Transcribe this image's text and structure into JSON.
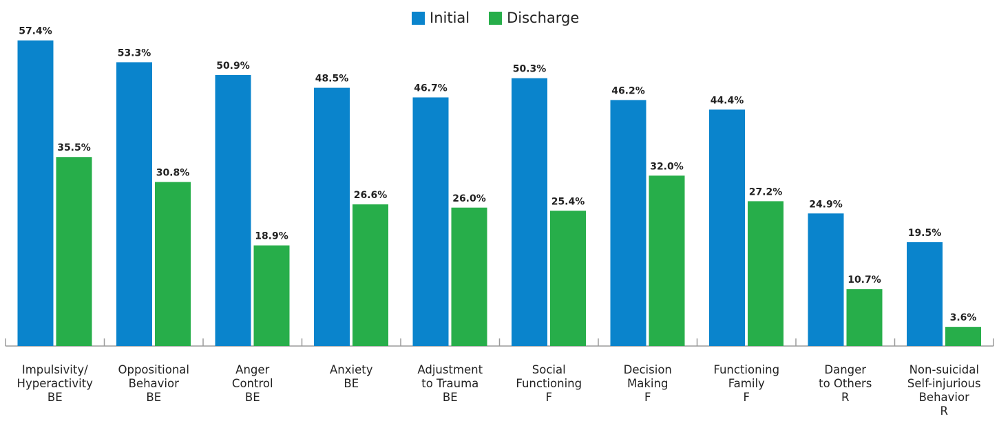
{
  "chart_data": {
    "type": "bar",
    "title": "",
    "xlabel": "",
    "ylabel": "",
    "ylim": [
      0,
      60
    ],
    "grid": false,
    "legend_position": "top-center",
    "value_suffix": "%",
    "categories": [
      [
        "Impulsivity/",
        "Hyperactivity",
        "BE"
      ],
      [
        "Oppositional",
        "Behavior",
        "BE"
      ],
      [
        "Anger",
        "Control",
        "BE"
      ],
      [
        "Anxiety",
        "BE"
      ],
      [
        "Adjustment",
        "to Trauma",
        "BE"
      ],
      [
        "Social",
        "Functioning",
        "F"
      ],
      [
        "Decision",
        "Making",
        "F"
      ],
      [
        "Functioning",
        "Family",
        "F"
      ],
      [
        "Danger",
        "to Others",
        "R"
      ],
      [
        "Non-suicidal",
        "Self-injurious",
        "Behavior",
        "R"
      ]
    ],
    "series": [
      {
        "name": "Initial",
        "color": "#0A84CC",
        "values": [
          57.4,
          53.3,
          50.9,
          48.5,
          46.7,
          50.3,
          46.2,
          44.4,
          24.9,
          19.5
        ]
      },
      {
        "name": "Discharge",
        "color": "#27AE4A",
        "values": [
          35.5,
          30.8,
          18.9,
          26.6,
          26.0,
          25.4,
          32.0,
          27.2,
          10.7,
          3.6
        ]
      }
    ]
  }
}
